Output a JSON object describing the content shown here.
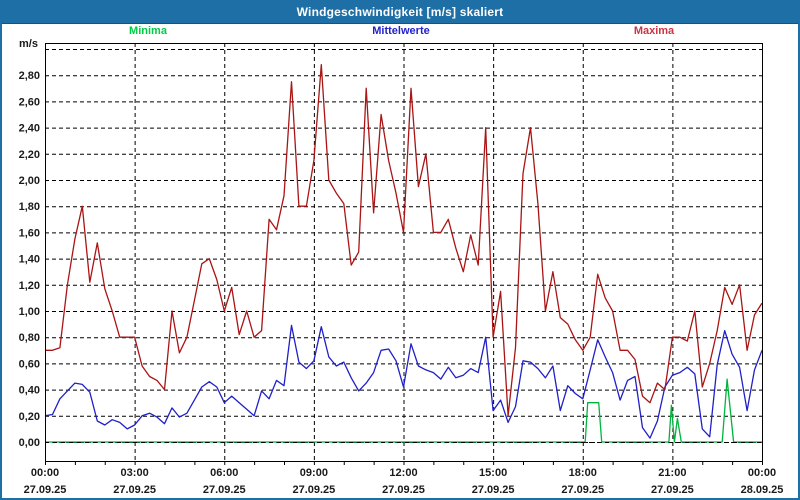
{
  "window": {
    "title": "Windgeschwindigkeit [m/s] skaliert"
  },
  "colors": {
    "titlebar_bg": "#1d6fa5",
    "frame": "#1d6fa5",
    "grid": "#000000",
    "plot_border": "#000000",
    "text": "#1a1a1a",
    "minima_label": "#00cc44",
    "mittelwerte_label": "#2222cc",
    "maxima_label": "#cc3344",
    "minima_line": "#00b43c",
    "mittelwerte_line": "#2020c8",
    "maxima_line": "#aa1414"
  },
  "legend": {
    "minima": "Minima",
    "mittelwerte": "Mittelwerte",
    "maxima": "Maxima"
  },
  "y_axis": {
    "unit_label": "m/s",
    "tick_labels": [
      "0,00",
      "0,20",
      "0,40",
      "0,60",
      "0,80",
      "1,00",
      "1,20",
      "1,40",
      "1,60",
      "1,80",
      "2,00",
      "2,20",
      "2,40",
      "2,60",
      "2,80"
    ],
    "min": 0.0,
    "max": 3.0,
    "step": 0.2
  },
  "x_axis": {
    "labels": [
      {
        "time": "00:00",
        "date": "27.09.25"
      },
      {
        "time": "03:00",
        "date": "27.09.25"
      },
      {
        "time": "06:00",
        "date": "27.09.25"
      },
      {
        "time": "09:00",
        "date": "27.09.25"
      },
      {
        "time": "12:00",
        "date": "27.09.25"
      },
      {
        "time": "15:00",
        "date": "27.09.25"
      },
      {
        "time": "18:00",
        "date": "27.09.25"
      },
      {
        "time": "21:00",
        "date": "27.09.25"
      },
      {
        "time": "00:00",
        "date": "28.09.25"
      }
    ]
  },
  "chart_data": {
    "type": "line",
    "title": "Windgeschwindigkeit [m/s] skaliert",
    "xlabel": "",
    "ylabel": "m/s",
    "ylim": [
      0,
      3.0
    ],
    "x_span_minutes": 1440,
    "grid": true,
    "gridline_minutes": 180,
    "tick_minutes": 60,
    "interval_minutes": 15,
    "series": [
      {
        "name": "Maxima",
        "color_key": "maxima_line",
        "values": [
          0.7,
          0.7,
          0.72,
          1.2,
          1.55,
          1.8,
          1.22,
          1.52,
          1.17,
          1.0,
          0.8,
          0.8,
          0.8,
          0.58,
          0.5,
          0.47,
          0.4,
          1.0,
          0.68,
          0.8,
          1.08,
          1.36,
          1.4,
          1.24,
          1.0,
          1.18,
          0.82,
          1.0,
          0.8,
          0.85,
          1.7,
          1.62,
          1.88,
          2.75,
          1.8,
          1.8,
          2.15,
          2.88,
          2.0,
          1.9,
          1.82,
          1.35,
          1.45,
          2.7,
          1.75,
          2.5,
          2.15,
          1.9,
          1.6,
          2.7,
          1.95,
          2.2,
          1.6,
          1.6,
          1.7,
          1.48,
          1.3,
          1.58,
          1.35,
          2.4,
          0.8,
          1.15,
          0.2,
          0.72,
          2.05,
          2.4,
          1.82,
          1.0,
          1.3,
          0.95,
          0.9,
          0.78,
          0.7,
          0.8,
          1.28,
          1.1,
          1.0,
          0.7,
          0.7,
          0.63,
          0.35,
          0.3,
          0.45,
          0.4,
          0.8,
          0.8,
          0.77,
          1.0,
          0.42,
          0.6,
          0.85,
          1.18,
          1.05,
          1.2,
          0.7,
          0.97,
          1.06
        ]
      },
      {
        "name": "Mittelwerte",
        "color_key": "mittelwerte_line",
        "values": [
          0.2,
          0.21,
          0.33,
          0.39,
          0.45,
          0.44,
          0.38,
          0.16,
          0.13,
          0.17,
          0.15,
          0.1,
          0.13,
          0.2,
          0.22,
          0.19,
          0.14,
          0.26,
          0.19,
          0.22,
          0.32,
          0.42,
          0.46,
          0.42,
          0.3,
          0.35,
          0.3,
          0.25,
          0.2,
          0.39,
          0.33,
          0.47,
          0.43,
          0.89,
          0.61,
          0.56,
          0.62,
          0.88,
          0.65,
          0.58,
          0.61,
          0.49,
          0.39,
          0.45,
          0.53,
          0.7,
          0.71,
          0.62,
          0.42,
          0.75,
          0.58,
          0.55,
          0.53,
          0.48,
          0.57,
          0.49,
          0.51,
          0.56,
          0.53,
          0.8,
          0.24,
          0.32,
          0.15,
          0.27,
          0.62,
          0.61,
          0.56,
          0.49,
          0.58,
          0.24,
          0.43,
          0.37,
          0.33,
          0.55,
          0.78,
          0.65,
          0.53,
          0.32,
          0.47,
          0.5,
          0.11,
          0.03,
          0.16,
          0.42,
          0.51,
          0.53,
          0.57,
          0.52,
          0.1,
          0.04,
          0.59,
          0.85,
          0.67,
          0.57,
          0.24,
          0.55,
          0.7
        ]
      },
      {
        "name": "Minima",
        "color_key": "minima_line",
        "points": [
          [
            0,
            0
          ],
          [
            1085,
            0
          ],
          [
            1090,
            0.3
          ],
          [
            1112,
            0.3
          ],
          [
            1118,
            0
          ],
          [
            1253,
            0
          ],
          [
            1258,
            0.28
          ],
          [
            1264,
            0
          ],
          [
            1270,
            0.18
          ],
          [
            1278,
            0
          ],
          [
            1360,
            0
          ],
          [
            1370,
            0.48
          ],
          [
            1383,
            0
          ],
          [
            1440,
            0
          ]
        ]
      }
    ]
  }
}
